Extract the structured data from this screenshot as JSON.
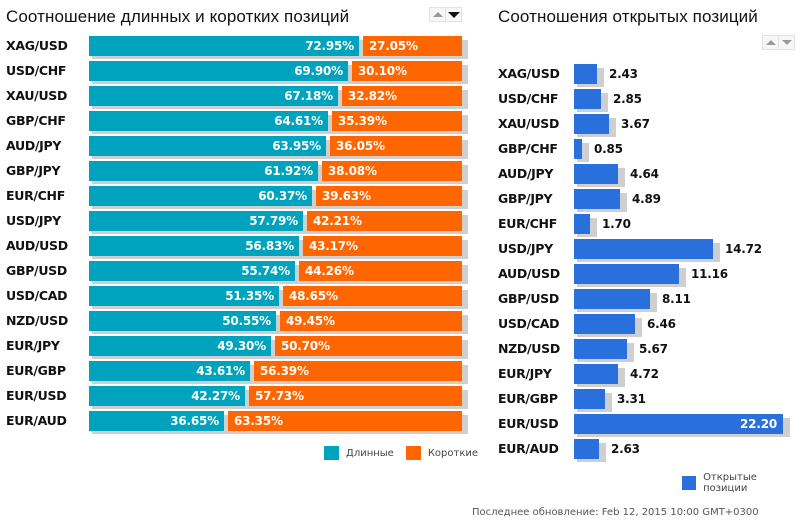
{
  "colors": {
    "long": "#00a3bd",
    "short": "#ff6600",
    "open": "#2970dc",
    "shadow": "#cfcfcf"
  },
  "chart_data": [
    {
      "type": "bar",
      "orientation": "horizontal-stacked-100",
      "title": "Соотношение длинных и коротких позиций",
      "categories": [
        "XAG/USD",
        "USD/CHF",
        "XAU/USD",
        "GBP/CHF",
        "AUD/JPY",
        "GBP/JPY",
        "EUR/CHF",
        "USD/JPY",
        "AUD/USD",
        "GBP/USD",
        "USD/CAD",
        "NZD/USD",
        "EUR/JPY",
        "EUR/GBP",
        "EUR/USD",
        "EUR/AUD"
      ],
      "series": [
        {
          "name": "Длинные",
          "values": [
            72.95,
            69.9,
            67.18,
            64.61,
            63.95,
            61.92,
            60.37,
            57.79,
            56.83,
            55.74,
            51.35,
            50.55,
            49.3,
            43.61,
            42.27,
            36.65
          ],
          "labels": [
            "72.95%",
            "69.90%",
            "67.18%",
            "64.61%",
            "63.95%",
            "61.92%",
            "60.37%",
            "57.79%",
            "56.83%",
            "55.74%",
            "51.35%",
            "50.55%",
            "49.30%",
            "43.61%",
            "42.27%",
            "36.65%"
          ]
        },
        {
          "name": "Короткие",
          "values": [
            27.05,
            30.1,
            32.82,
            35.39,
            36.05,
            38.08,
            39.63,
            42.21,
            43.17,
            44.26,
            48.65,
            49.45,
            50.7,
            56.39,
            57.73,
            63.35
          ],
          "labels": [
            "27.05%",
            "30.10%",
            "32.82%",
            "35.39%",
            "36.05%",
            "38.08%",
            "39.63%",
            "42.21%",
            "43.17%",
            "44.26%",
            "48.65%",
            "49.45%",
            "50.70%",
            "56.39%",
            "57.73%",
            "63.35%"
          ]
        }
      ],
      "xlim": [
        0,
        100
      ],
      "legend": "bottom-right",
      "grid": false
    },
    {
      "type": "bar",
      "orientation": "horizontal",
      "title": "Соотношения открытых позиций",
      "categories": [
        "XAG/USD",
        "USD/CHF",
        "XAU/USD",
        "GBP/CHF",
        "AUD/JPY",
        "GBP/JPY",
        "EUR/CHF",
        "USD/JPY",
        "AUD/USD",
        "GBP/USD",
        "USD/CAD",
        "NZD/USD",
        "EUR/JPY",
        "EUR/GBP",
        "EUR/USD",
        "EUR/AUD"
      ],
      "series": [
        {
          "name": "Открытые позиции",
          "values": [
            2.43,
            2.85,
            3.67,
            0.85,
            4.64,
            4.89,
            1.7,
            14.72,
            11.16,
            8.11,
            6.46,
            5.67,
            4.72,
            3.31,
            22.2,
            2.63
          ],
          "labels": [
            "2.43",
            "2.85",
            "3.67",
            "0.85",
            "4.64",
            "4.89",
            "1.70",
            "14.72",
            "11.16",
            "8.11",
            "6.46",
            "5.67",
            "4.72",
            "3.31",
            "22.20",
            "2.63"
          ]
        }
      ],
      "xlim": [
        0,
        22.2
      ],
      "legend": "bottom-right",
      "grid": false
    }
  ],
  "left": {
    "title": "Соотношение длинных и коротких позиций",
    "legend_long": "Длинные",
    "legend_short": "Короткие",
    "sort_up_icon": "triangle-up",
    "sort_down_icon": "triangle-down"
  },
  "right": {
    "title": "Соотношения открытых позиций",
    "legend_open": "Открытые позиции",
    "sort_up_icon": "triangle-up",
    "sort_down_icon": "triangle-down"
  },
  "footer": {
    "last_update": "Последнее обновление: Feb 12, 2015 10:00 GMT+0300"
  }
}
